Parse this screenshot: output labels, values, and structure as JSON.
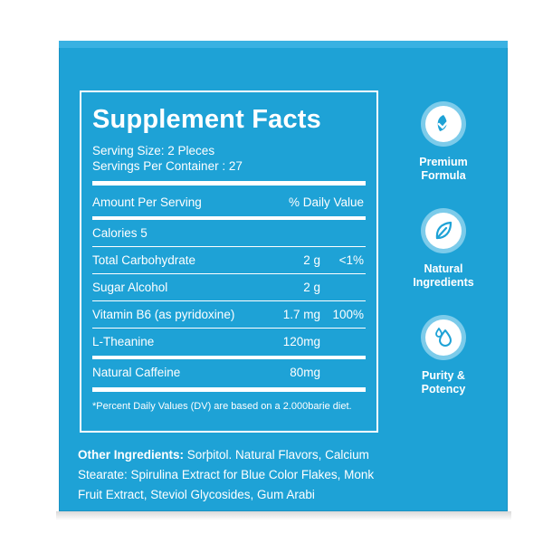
{
  "panel": {
    "title": "Supplement Facts",
    "serving_size": "Serving Size: 2 Pleces",
    "servings_per_container": "Servings Per Container : 27",
    "header": {
      "amount": "Amount Per Serving",
      "daily_value": "% Daily Value"
    },
    "rows": [
      {
        "label": "Calories 5",
        "amount": "",
        "dv": ""
      },
      {
        "label": "Total Carbohydrate",
        "amount": "2 g",
        "dv": "<1%"
      },
      {
        "label": "Sugar Alcohol",
        "amount": "2 g",
        "dv": ""
      },
      {
        "label": "Vitamin B6 (as pyridoxine)",
        "amount": "1.7 mg",
        "dv": "100%"
      },
      {
        "label": "L-Theanine",
        "amount": "120mg",
        "dv": ""
      },
      {
        "label": "Natural Caffeine",
        "amount": "80mg",
        "dv": ""
      }
    ],
    "footnote": "*Percent Daily Values (DV) are based on a 2.000barie diet."
  },
  "other_ingredients": {
    "label": "Other Ingredients:",
    "text": "Sorþitol. Natural Flavors, Calcium Stearate: Spirulina Extract for Blue Color Flakes, Monk Fruit Extract, Steviol Glycosides, Gum Arabi"
  },
  "badges": [
    {
      "icon": "leaf-check-icon",
      "line1": "Premium",
      "line2": "Formula"
    },
    {
      "icon": "leaf-icon",
      "line1": "Natural",
      "line2": "Ingredients"
    },
    {
      "icon": "droplets-icon",
      "line1": "Purity &",
      "line2": "Potency"
    }
  ],
  "colors": {
    "box": "#1ea2d6",
    "badge_ring": "#7ccbea",
    "text": "#ffffff"
  }
}
